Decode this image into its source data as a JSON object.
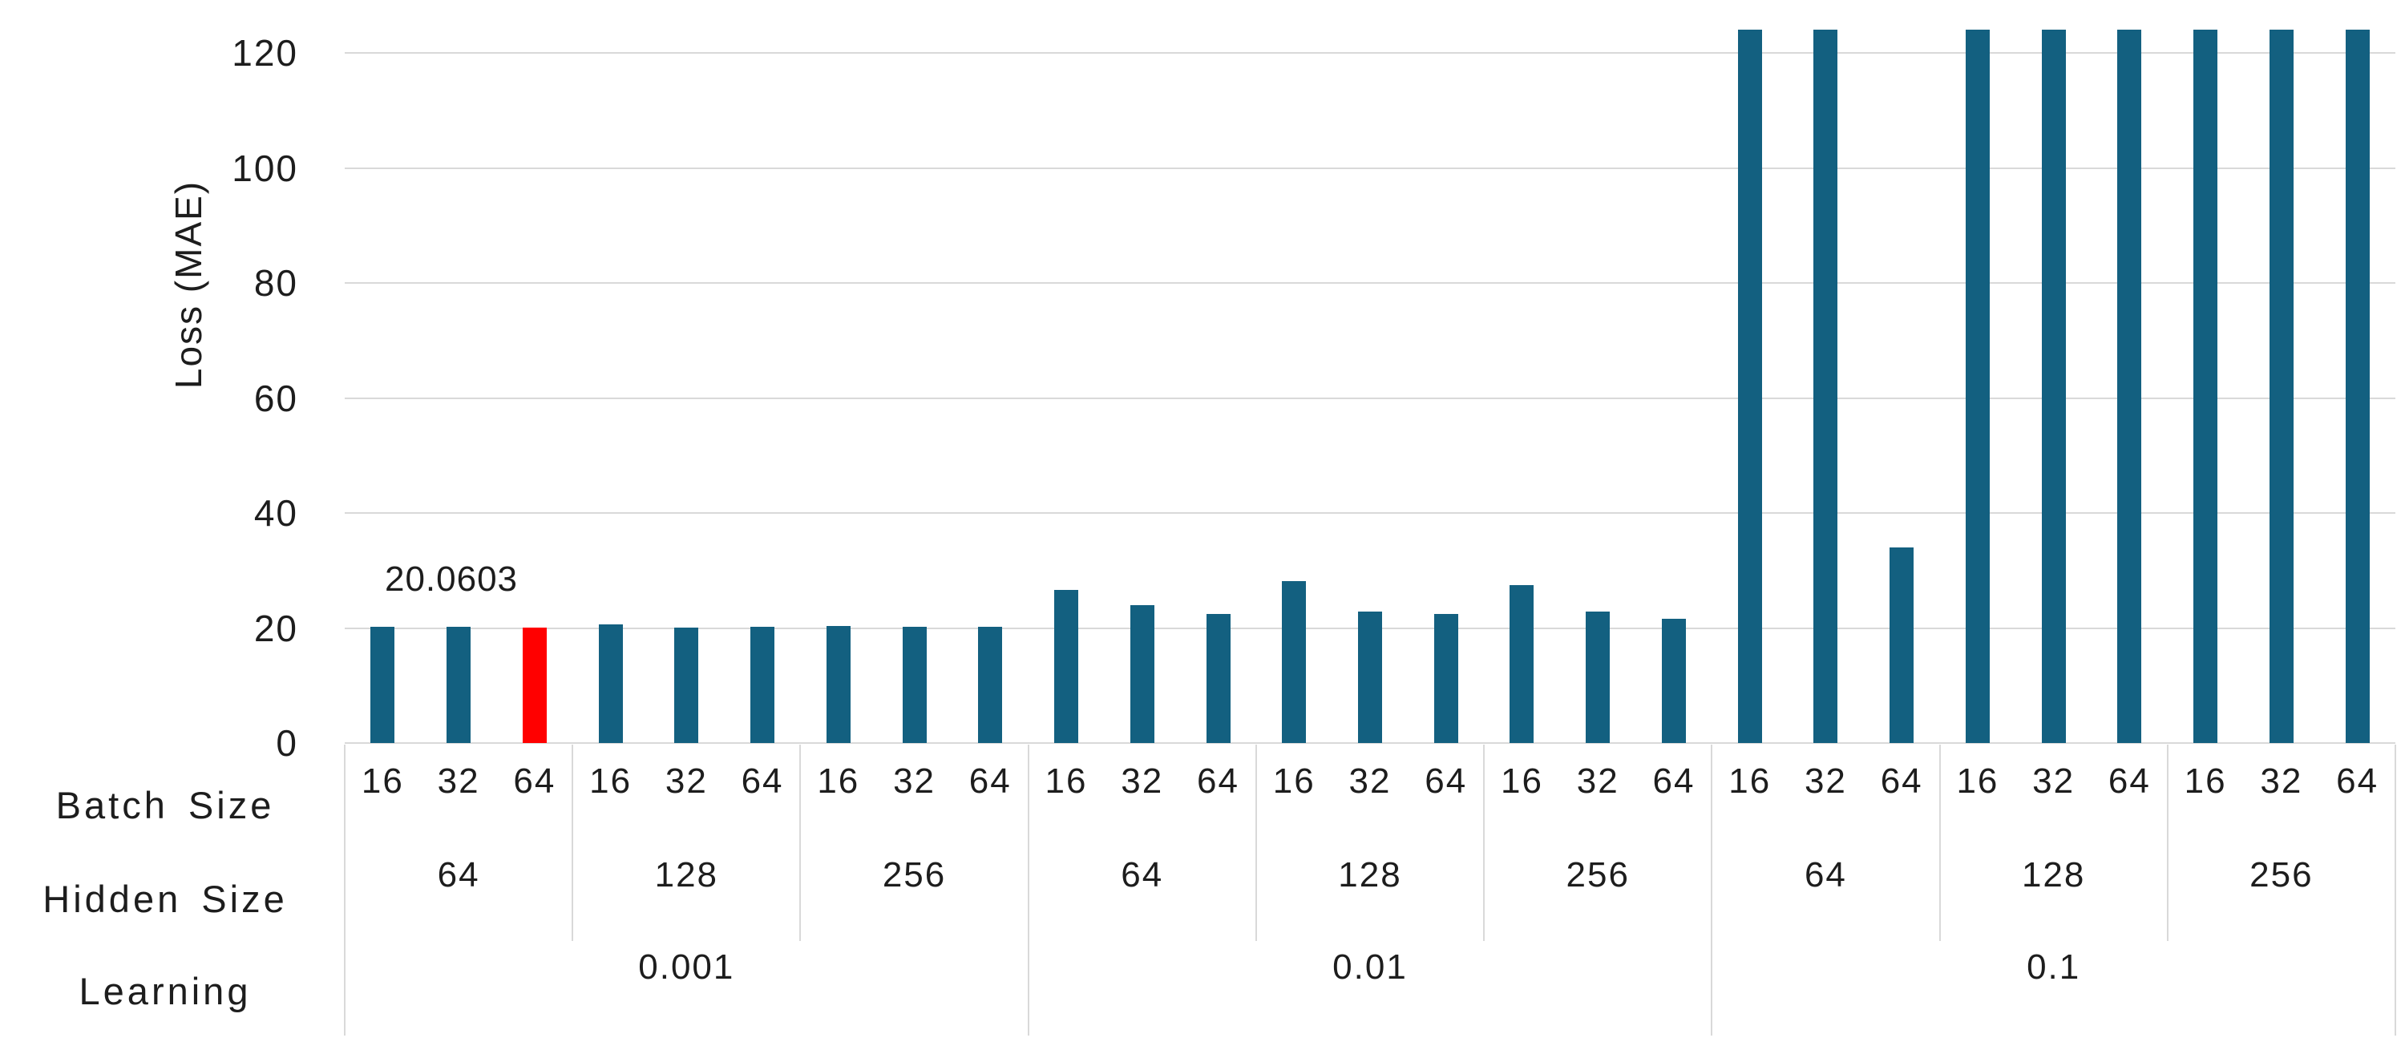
{
  "chart_data": {
    "type": "bar",
    "title": "",
    "ylabel": "Loss (MAE)",
    "xlabel": "",
    "yticks": [
      0,
      20,
      40,
      60,
      80,
      100,
      120
    ],
    "ylim": [
      0,
      124
    ],
    "grid": "horizontal",
    "legend": "none",
    "bar_color": "#136080",
    "highlight_color": "#ff0000",
    "gridline_color": "#d9d9d9",
    "annotation": "20.0603",
    "row_labels": [
      "Batch Size",
      "Hidden Size",
      "Learning"
    ],
    "groups": [
      {
        "learning_rate": "0.001",
        "hidden": [
          {
            "size": "64",
            "bars": [
              {
                "batch": "16",
                "value": 20.2
              },
              {
                "batch": "32",
                "value": 20.2
              },
              {
                "batch": "64",
                "value": 20.0603,
                "highlight": true,
                "annotated": true
              }
            ]
          },
          {
            "size": "128",
            "bars": [
              {
                "batch": "16",
                "value": 20.6
              },
              {
                "batch": "32",
                "value": 20.1
              },
              {
                "batch": "64",
                "value": 20.2
              }
            ]
          },
          {
            "size": "256",
            "bars": [
              {
                "batch": "16",
                "value": 20.3
              },
              {
                "batch": "32",
                "value": 20.2
              },
              {
                "batch": "64",
                "value": 20.2
              }
            ]
          }
        ]
      },
      {
        "learning_rate": "0.01",
        "hidden": [
          {
            "size": "64",
            "bars": [
              {
                "batch": "16",
                "value": 26.6
              },
              {
                "batch": "32",
                "value": 24.0
              },
              {
                "batch": "64",
                "value": 22.4
              }
            ]
          },
          {
            "size": "128",
            "bars": [
              {
                "batch": "16",
                "value": 28.2
              },
              {
                "batch": "32",
                "value": 22.9
              },
              {
                "batch": "64",
                "value": 22.4
              }
            ]
          },
          {
            "size": "256",
            "bars": [
              {
                "batch": "16",
                "value": 27.4
              },
              {
                "batch": "32",
                "value": 22.9
              },
              {
                "batch": "64",
                "value": 21.6
              }
            ]
          }
        ]
      },
      {
        "learning_rate": "0.1",
        "hidden": [
          {
            "size": "64",
            "bars": [
              {
                "batch": "16",
                "value": 124,
                "clipped": true
              },
              {
                "batch": "32",
                "value": 124,
                "clipped": true
              },
              {
                "batch": "64",
                "value": 34
              }
            ]
          },
          {
            "size": "128",
            "bars": [
              {
                "batch": "16",
                "value": 124,
                "clipped": true
              },
              {
                "batch": "32",
                "value": 124,
                "clipped": true
              },
              {
                "batch": "64",
                "value": 124,
                "clipped": true
              }
            ]
          },
          {
            "size": "256",
            "bars": [
              {
                "batch": "16",
                "value": 124,
                "clipped": true
              },
              {
                "batch": "32",
                "value": 124,
                "clipped": true
              },
              {
                "batch": "64",
                "value": 124,
                "clipped": true
              }
            ]
          }
        ]
      }
    ]
  }
}
